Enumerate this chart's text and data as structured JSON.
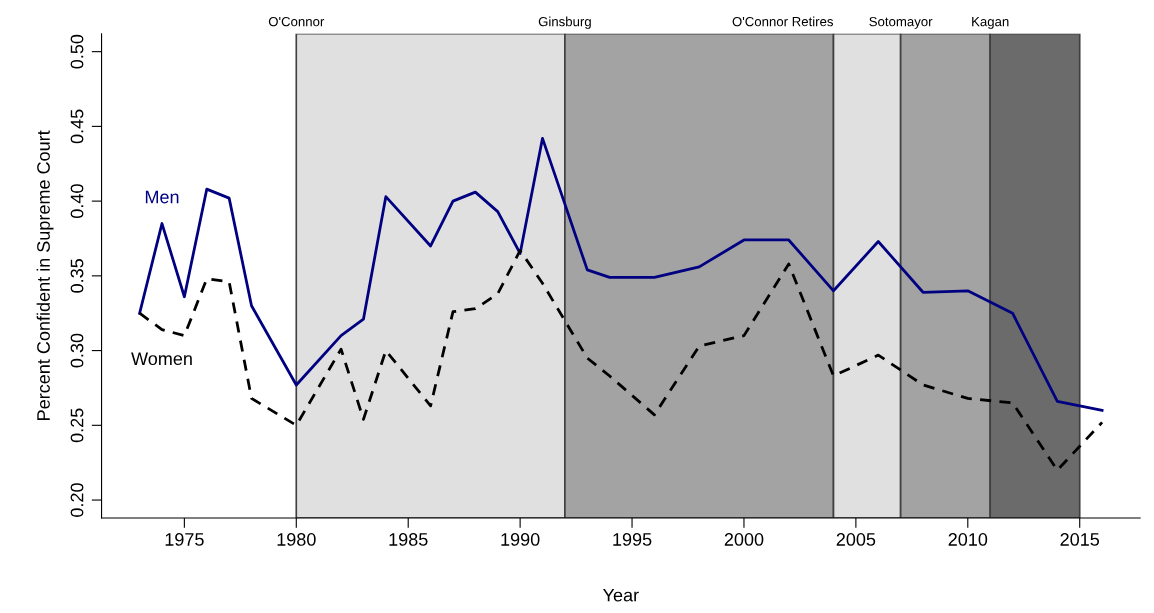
{
  "chart_data": {
    "type": "line",
    "xlabel": "Year",
    "ylabel": "Percent Confident in Supreme Court",
    "x": [
      1973,
      1974,
      1975,
      1976,
      1977,
      1978,
      1980,
      1982,
      1983,
      1984,
      1986,
      1987,
      1988,
      1989,
      1990,
      1991,
      1993,
      1994,
      1996,
      1998,
      2000,
      2002,
      2004,
      2006,
      2008,
      2010,
      2012,
      2014,
      2016
    ],
    "series": [
      {
        "name": "Men",
        "color": "#000080",
        "line_style": "solid",
        "values": [
          0.325,
          0.385,
          0.336,
          0.408,
          0.402,
          0.33,
          0.277,
          0.31,
          0.321,
          0.403,
          0.37,
          0.4,
          0.406,
          0.393,
          0.365,
          0.442,
          0.354,
          0.349,
          0.349,
          0.356,
          0.374,
          0.374,
          0.34,
          0.373,
          0.339,
          0.34,
          0.325,
          0.266,
          0.26
        ]
      },
      {
        "name": "Women",
        "color": "#000000",
        "line_style": "dashed",
        "values": [
          0.325,
          0.314,
          0.31,
          0.348,
          0.346,
          0.268,
          0.25,
          0.301,
          0.254,
          0.3,
          0.263,
          0.326,
          0.328,
          0.338,
          0.367,
          0.345,
          0.295,
          0.283,
          0.257,
          0.303,
          0.31,
          0.358,
          0.283,
          0.297,
          0.277,
          0.268,
          0.265,
          0.22,
          0.252
        ]
      }
    ],
    "bands": [
      {
        "axis": "x",
        "from": 1980,
        "to": 1992,
        "label": "O'Connor",
        "color": "#e0e0e0"
      },
      {
        "axis": "x",
        "from": 1992,
        "to": 2004,
        "label": "Ginsburg",
        "color": "#a3a3a3"
      },
      {
        "axis": "x",
        "from": 2004,
        "to": 2007,
        "label": "O'Connor Retires",
        "color": "#e0e0e0"
      },
      {
        "axis": "x",
        "from": 2007,
        "to": 2011,
        "label": "Sotomayor",
        "color": "#a3a3a3"
      },
      {
        "axis": "x",
        "from": 2011,
        "to": 2015,
        "label": "Kagan",
        "color": "#6b6b6b"
      }
    ],
    "xlim": [
      1971.3,
      2017.7
    ],
    "xticks": [
      1975,
      1980,
      1985,
      1990,
      1995,
      2000,
      2005,
      2010,
      2015
    ],
    "ylim": [
      0.188,
      0.512
    ],
    "yticks": [
      {
        "value": 0.2,
        "label": "0.20"
      },
      {
        "value": 0.25,
        "label": "0.25"
      },
      {
        "value": 0.3,
        "label": "0.30"
      },
      {
        "value": 0.35,
        "label": "0.35"
      },
      {
        "value": 0.4,
        "label": "0.40"
      },
      {
        "value": 0.45,
        "label": "0.45"
      },
      {
        "value": 0.5,
        "label": "0.50"
      }
    ],
    "grid": false,
    "legend": false
  }
}
